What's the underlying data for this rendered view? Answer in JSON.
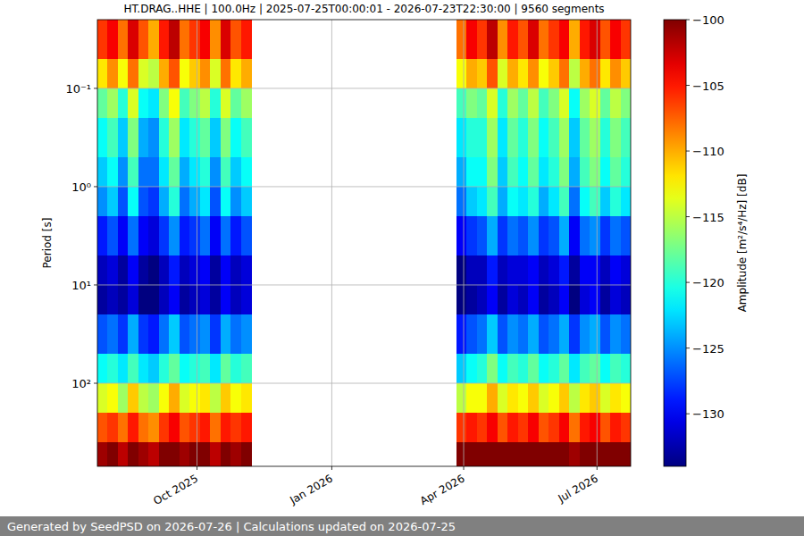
{
  "chart_data": {
    "type": "heatmap",
    "title": "HT.DRAG..HHE | 100.0Hz | 2025-07-25T00:00:01 - 2026-07-23T22:30:00 | 9560 segments",
    "footer": "Generated by SeedPSD on 2026-07-26 | Calculations updated on 2026-07-25",
    "y_label": "Period [s]",
    "x": [
      "2025-07-25",
      "2025-08-01",
      "2025-08-08",
      "2025-08-15",
      "2025-08-22",
      "2025-08-29",
      "2025-09-05",
      "2025-09-12",
      "2025-09-19",
      "2025-09-26",
      "2025-10-03",
      "2025-10-10",
      "2025-10-17",
      "2025-10-24",
      "2025-10-31",
      "2025-11-07",
      "2025-11-14",
      "2025-11-21",
      "2025-11-28",
      "2025-12-05",
      "2025-12-12",
      "2025-12-19",
      "2025-12-26",
      "2026-01-02",
      "2026-01-09",
      "2026-01-16",
      "2026-01-23",
      "2026-01-30",
      "2026-02-06",
      "2026-02-13",
      "2026-02-20",
      "2026-02-27",
      "2026-03-06",
      "2026-03-13",
      "2026-03-20",
      "2026-03-27",
      "2026-04-03",
      "2026-04-10",
      "2026-04-17",
      "2026-04-24",
      "2026-05-01",
      "2026-05-08",
      "2026-05-15",
      "2026-05-22",
      "2026-05-29",
      "2026-06-05",
      "2026-06-12",
      "2026-06-19",
      "2026-06-26",
      "2026-07-03",
      "2026-07-10",
      "2026-07-17"
    ],
    "period_bins": [
      0.02,
      0.05,
      0.1,
      0.2,
      0.5,
      1,
      2,
      5,
      10,
      20,
      50,
      100,
      200,
      400,
      700
    ],
    "values": [
      [
        -106,
        -104,
        -108,
        -103,
        -107,
        -110,
        -105,
        -102,
        -108,
        -106,
        -104,
        -109,
        -103,
        -107,
        -105,
        null,
        null,
        null,
        null,
        null,
        null,
        null,
        null,
        null,
        null,
        null,
        null,
        null,
        null,
        null,
        null,
        null,
        null,
        null,
        null,
        -108,
        -104,
        -106,
        -102,
        -109,
        -105,
        -107,
        -103,
        -108,
        -106,
        -104,
        -110,
        -105,
        -103,
        -107,
        -104,
        -106
      ],
      [
        -112,
        -109,
        -113,
        -108,
        -114,
        -115,
        -110,
        -107,
        -113,
        -111,
        -109,
        -114,
        -108,
        -112,
        -110,
        null,
        null,
        null,
        null,
        null,
        null,
        null,
        null,
        null,
        null,
        null,
        null,
        null,
        null,
        null,
        null,
        null,
        null,
        null,
        null,
        -113,
        -110,
        -111,
        -107,
        -114,
        -110,
        -112,
        -109,
        -113,
        -111,
        -108,
        -115,
        -110,
        -108,
        -112,
        -109,
        -111
      ],
      [
        -118,
        -116,
        -120,
        -114,
        -121,
        -122,
        -117,
        -113,
        -119,
        -117,
        -115,
        -120,
        -114,
        -118,
        -116,
        null,
        null,
        null,
        null,
        null,
        null,
        null,
        null,
        null,
        null,
        null,
        null,
        null,
        null,
        null,
        null,
        null,
        null,
        null,
        null,
        -119,
        -117,
        -118,
        -114,
        -120,
        -116,
        -118,
        -115,
        -119,
        -117,
        -114,
        -121,
        -116,
        -114,
        -118,
        -115,
        -117
      ],
      [
        -121,
        -119,
        -123,
        -117,
        -124,
        -125,
        -120,
        -116,
        -122,
        -120,
        -118,
        -123,
        -117,
        -121,
        -119,
        null,
        null,
        null,
        null,
        null,
        null,
        null,
        null,
        null,
        null,
        null,
        null,
        null,
        null,
        null,
        null,
        null,
        null,
        null,
        null,
        -122,
        -120,
        -120,
        -116,
        -122,
        -118,
        -120,
        -117,
        -121,
        -119,
        -116,
        -123,
        -118,
        -116,
        -120,
        -117,
        -119
      ],
      [
        -123,
        -121,
        -125,
        -119,
        -126,
        -126,
        -122,
        -118,
        -124,
        -122,
        -120,
        -125,
        -119,
        -123,
        -121,
        null,
        null,
        null,
        null,
        null,
        null,
        null,
        null,
        null,
        null,
        null,
        null,
        null,
        null,
        null,
        null,
        null,
        null,
        null,
        null,
        -124,
        -121,
        -121,
        -117,
        -123,
        -119,
        -121,
        -118,
        -122,
        -120,
        -117,
        -124,
        -119,
        -117,
        -121,
        -118,
        -120
      ],
      [
        -125,
        -123,
        -127,
        -121,
        -127,
        -128,
        -124,
        -120,
        -126,
        -124,
        -122,
        -127,
        -121,
        -125,
        -123,
        null,
        null,
        null,
        null,
        null,
        null,
        null,
        null,
        null,
        null,
        null,
        null,
        null,
        null,
        null,
        null,
        null,
        null,
        null,
        null,
        -126,
        -123,
        -122,
        -119,
        -124,
        -121,
        -122,
        -120,
        -124,
        -122,
        -119,
        -126,
        -121,
        -119,
        -123,
        -120,
        -122
      ],
      [
        -129,
        -127,
        -130,
        -126,
        -130,
        -131,
        -128,
        -125,
        -129,
        -128,
        -126,
        -130,
        -126,
        -129,
        -127,
        null,
        null,
        null,
        null,
        null,
        null,
        null,
        null,
        null,
        null,
        null,
        null,
        null,
        null,
        null,
        null,
        null,
        null,
        null,
        null,
        -130,
        -128,
        -127,
        -124,
        -128,
        -126,
        -127,
        -125,
        -128,
        -127,
        -124,
        -130,
        -126,
        -125,
        -128,
        -126,
        -127
      ],
      [
        -132,
        -131,
        -133,
        -130,
        -133,
        -134,
        -132,
        -129,
        -132,
        -131,
        -130,
        -133,
        -130,
        -132,
        -131,
        null,
        null,
        null,
        null,
        null,
        null,
        null,
        null,
        null,
        null,
        null,
        null,
        null,
        null,
        null,
        null,
        null,
        null,
        null,
        null,
        -134,
        -132,
        -132,
        -129,
        -132,
        -131,
        -131,
        -130,
        -132,
        -131,
        -129,
        -133,
        -130,
        -130,
        -132,
        -130,
        -131
      ],
      [
        -133,
        -132,
        -133,
        -131,
        -134,
        -134,
        -132,
        -130,
        -133,
        -132,
        -131,
        -133,
        -130,
        -132,
        -131,
        null,
        null,
        null,
        null,
        null,
        null,
        null,
        null,
        null,
        null,
        null,
        null,
        null,
        null,
        null,
        null,
        null,
        null,
        null,
        null,
        -134,
        -133,
        -132,
        -130,
        -133,
        -131,
        -132,
        -130,
        -133,
        -132,
        -130,
        -134,
        -131,
        -130,
        -133,
        -131,
        -132
      ],
      [
        -127,
        -126,
        -128,
        -124,
        -128,
        -129,
        -126,
        -123,
        -127,
        -126,
        -125,
        -128,
        -124,
        -126,
        -125,
        null,
        null,
        null,
        null,
        null,
        null,
        null,
        null,
        null,
        null,
        null,
        null,
        null,
        null,
        null,
        null,
        null,
        null,
        null,
        null,
        -129,
        -127,
        -126,
        -123,
        -127,
        -125,
        -126,
        -124,
        -127,
        -126,
        -124,
        -128,
        -125,
        -124,
        -127,
        -125,
        -126
      ],
      [
        -121,
        -120,
        -122,
        -119,
        -122,
        -123,
        -120,
        -118,
        -121,
        -120,
        -119,
        -122,
        -118,
        -120,
        -119,
        null,
        null,
        null,
        null,
        null,
        null,
        null,
        null,
        null,
        null,
        null,
        null,
        null,
        null,
        null,
        null,
        null,
        null,
        null,
        null,
        -123,
        -121,
        -120,
        -117,
        -121,
        -119,
        -120,
        -118,
        -121,
        -120,
        -118,
        -122,
        -119,
        -118,
        -121,
        -119,
        -120
      ],
      [
        -114,
        -113,
        -116,
        -111,
        -115,
        -116,
        -113,
        -110,
        -114,
        -113,
        -112,
        -115,
        -111,
        -113,
        -112,
        null,
        null,
        null,
        null,
        null,
        null,
        null,
        null,
        null,
        null,
        null,
        null,
        null,
        null,
        null,
        null,
        null,
        null,
        null,
        null,
        -115,
        -113,
        -113,
        -110,
        -114,
        -112,
        -113,
        -111,
        -114,
        -113,
        -111,
        -115,
        -112,
        -111,
        -114,
        -112,
        -113
      ],
      [
        -107,
        -106,
        -108,
        -105,
        -108,
        -109,
        -106,
        -104,
        -107,
        -106,
        -105,
        -108,
        -105,
        -106,
        -105,
        null,
        null,
        null,
        null,
        null,
        null,
        null,
        null,
        null,
        null,
        null,
        null,
        null,
        null,
        null,
        null,
        null,
        null,
        null,
        null,
        -106,
        -105,
        -106,
        -104,
        -107,
        -105,
        -106,
        -104,
        -107,
        -106,
        -104,
        -108,
        -105,
        -104,
        -107,
        -105,
        -106
      ],
      [
        -101,
        -100,
        -102,
        -99,
        -101,
        -102,
        -100,
        -99,
        -101,
        -100,
        -99,
        -102,
        -100,
        -101,
        -100,
        null,
        null,
        null,
        null,
        null,
        null,
        null,
        null,
        null,
        null,
        null,
        null,
        null,
        null,
        null,
        null,
        null,
        null,
        null,
        null,
        -99,
        -99,
        -100,
        -98,
        -100,
        -99,
        -100,
        -99,
        -100,
        -100,
        -98,
        -101,
        -99,
        -98,
        -100,
        -99,
        -100
      ]
    ],
    "xlim": [
      "2025-07-25",
      "2026-07-24"
    ],
    "xticks": [
      {
        "value": "2025-10-01",
        "label": "Oct 2025"
      },
      {
        "value": "2026-01-01",
        "label": "Jan 2026"
      },
      {
        "value": "2026-04-01",
        "label": "Apr 2026"
      },
      {
        "value": "2026-07-01",
        "label": "Jul 2026"
      }
    ],
    "ylim": [
      700,
      0.02
    ],
    "yticks": [
      {
        "value": 0.1,
        "label": "10⁻¹"
      },
      {
        "value": 1,
        "label": "10⁰"
      },
      {
        "value": 10,
        "label": "10¹"
      },
      {
        "value": 100,
        "label": "10²"
      }
    ],
    "log": "y",
    "grid": true,
    "colorbar": {
      "label": "Amplitude [m²/s⁴/Hz] [dB]",
      "lim": [
        -134,
        -100
      ],
      "ticks": [
        {
          "value": -100,
          "label": "−100"
        },
        {
          "value": -105,
          "label": "−105"
        },
        {
          "value": -110,
          "label": "−110"
        },
        {
          "value": -115,
          "label": "−115"
        },
        {
          "value": -120,
          "label": "−120"
        },
        {
          "value": -125,
          "label": "−125"
        },
        {
          "value": -130,
          "label": "−130"
        }
      ]
    }
  }
}
